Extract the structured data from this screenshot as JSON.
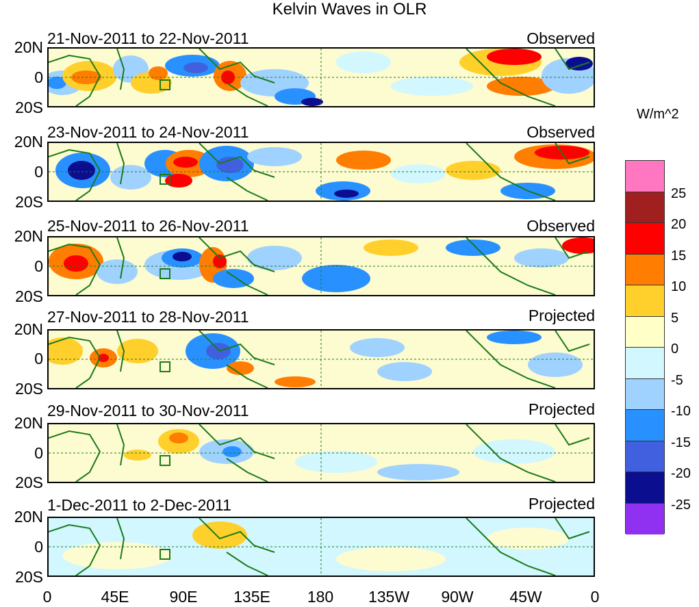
{
  "title": "Kelvin Waves in OLR",
  "units": "W/m^2",
  "x_ticks": [
    "0",
    "45E",
    "90E",
    "135E",
    "180",
    "135W",
    "90W",
    "45W",
    "0"
  ],
  "y_ticks": [
    "20N",
    "0",
    "20S"
  ],
  "colorbar": {
    "labels": [
      "25",
      "20",
      "15",
      "10",
      "5",
      "0",
      "-5",
      "-10",
      "-15",
      "-20",
      "-25"
    ],
    "colors": [
      "#ff77c0",
      "#a02020",
      "#ff0000",
      "#ff7d00",
      "#ffd02c",
      "#ffffc8",
      "#d2f7ff",
      "#a0d2ff",
      "#2891ff",
      "#4060e0",
      "#0c0e90",
      "#9030f0"
    ]
  },
  "panels": [
    {
      "date": "21-Nov-2011 to 22-Nov-2011",
      "status": "Observed"
    },
    {
      "date": "23-Nov-2011 to 24-Nov-2011",
      "status": "Observed"
    },
    {
      "date": "25-Nov-2011 to 26-Nov-2011",
      "status": "Observed"
    },
    {
      "date": "27-Nov-2011 to 28-Nov-2011",
      "status": "Projected"
    },
    {
      "date": "29-Nov-2011 to 30-Nov-2011",
      "status": "Projected"
    },
    {
      "date": "1-Dec-2011 to 2-Dec-2011",
      "status": "Projected"
    }
  ]
}
